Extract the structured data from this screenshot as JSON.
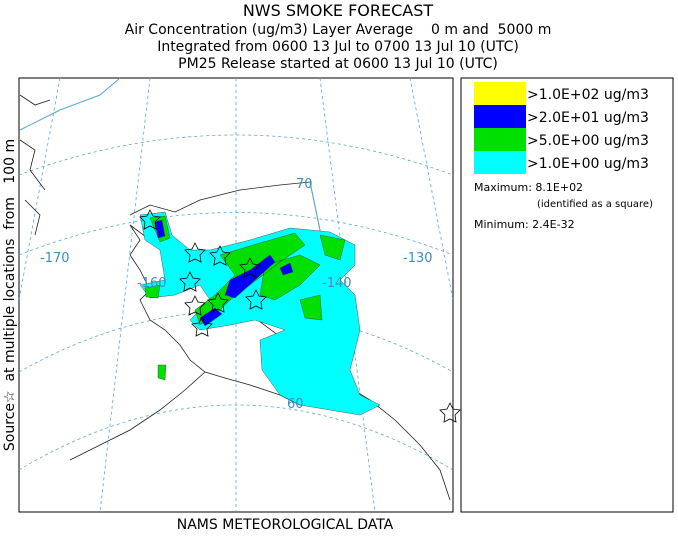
{
  "header": {
    "title": "NWS SMOKE FORECAST",
    "lines": [
      "Air Concentration (ug/m3) Layer Average    0 m and  5000 m",
      "Integrated from 0600 13 Jul to 0700 13 Jul 10 (UTC)",
      "PM25 Release started at 0600 13 Jul 10 (UTC)"
    ]
  },
  "side_label": "Source☆  at multiple locations  from   100 m",
  "footer": "NAMS METEOROLOGICAL DATA",
  "legend": {
    "entries": [
      {
        "label": ">1.0E+02 ug/m3",
        "color": "#ffff00"
      },
      {
        "label": ">2.0E+01 ug/m3",
        "color": "#0000ff"
      },
      {
        "label": ">5.0E+00 ug/m3",
        "color": "#00e000"
      },
      {
        "label": ">1.0E+00 ug/m3",
        "color": "#00ffff"
      }
    ],
    "maximum": "Maximum: 8.1E+02",
    "max_note": "(identified as a square)",
    "minimum": "Minimum: 2.4E-32"
  },
  "map": {
    "labels": [
      "-170",
      "-160",
      "70",
      "-130",
      "-140",
      "60"
    ]
  }
}
